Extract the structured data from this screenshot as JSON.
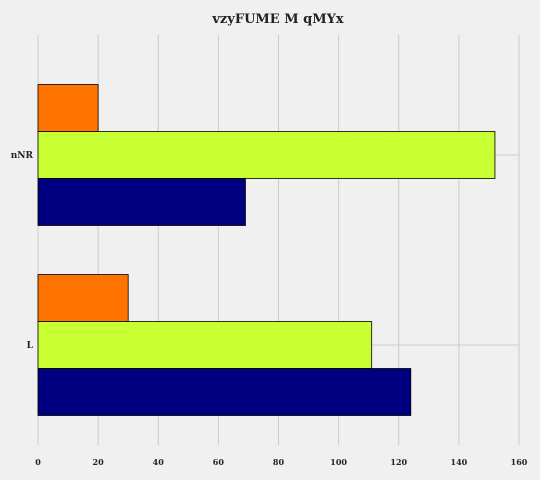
{
  "chart_data": {
    "type": "bar",
    "orientation": "horizontal",
    "title": "vzyFUME M qMYx",
    "xlabel": "",
    "ylabel": "",
    "categories": [
      "nNR",
      "L"
    ],
    "series": [
      {
        "color": "#ff7400",
        "values": [
          20,
          30
        ]
      },
      {
        "color": "#c8ff32",
        "values": [
          152,
          111
        ]
      },
      {
        "color": "#000080",
        "values": [
          69,
          124
        ]
      }
    ],
    "xlim": [
      0,
      160
    ],
    "xticks": [
      "0",
      "20",
      "40",
      "60",
      "80",
      "100",
      "120",
      "140",
      "160"
    ],
    "grid": true,
    "background": "#f0f0f0",
    "grid_color": "#cbcbcb"
  }
}
